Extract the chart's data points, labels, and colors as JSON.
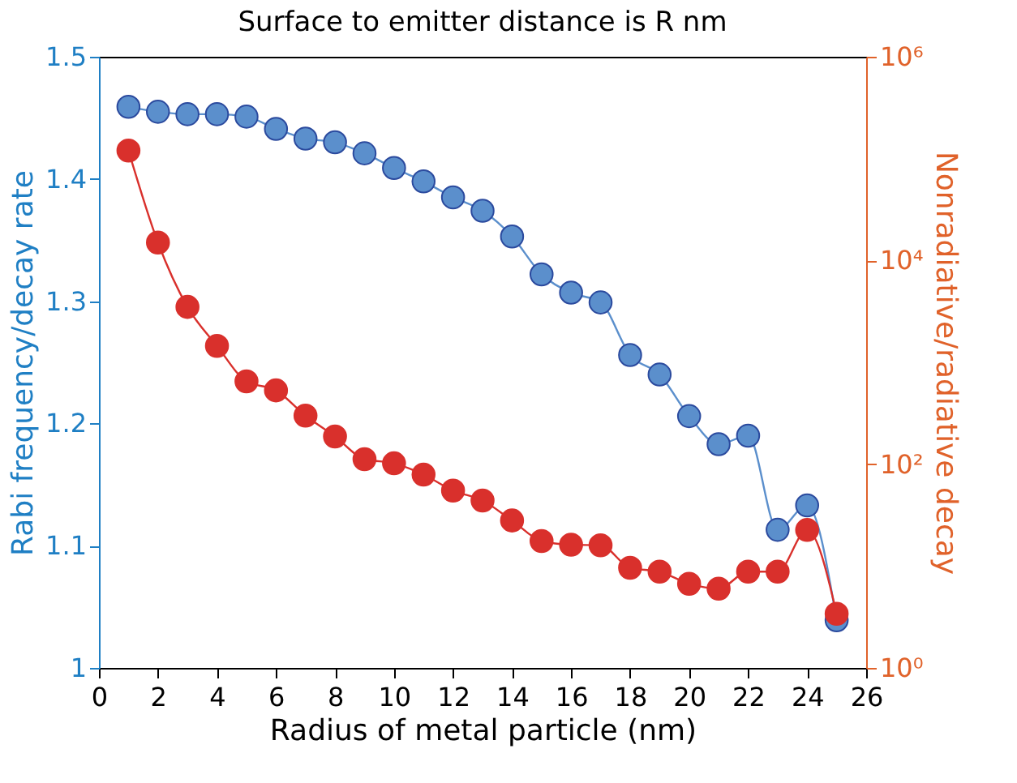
{
  "chart_data": {
    "type": "line",
    "title": "Surface to emitter distance is R nm",
    "xlabel": "Radius of metal particle (nm)",
    "ylabel": "Rabi frequency/decay rate",
    "y2label": "Nonradiative/radiative decay",
    "x": [
      1,
      2,
      3,
      4,
      5,
      6,
      7,
      8,
      9,
      10,
      11,
      12,
      13,
      14,
      15,
      16,
      17,
      18,
      19,
      20,
      21,
      22,
      23,
      24,
      25
    ],
    "series": [
      {
        "color": "#5b8fcc",
        "values": [
          1.459,
          1.455,
          1.453,
          1.453,
          1.451,
          1.441,
          1.433,
          1.43,
          1.421,
          1.409,
          1.398,
          1.385,
          1.374,
          1.353,
          1.322,
          1.307,
          1.299,
          1.256,
          1.24,
          1.206,
          1.183,
          1.19,
          1.113,
          1.133,
          1.039
        ]
      },
      {
        "color": "#d9302c",
        "axis": "y2",
        "values": [
          120000,
          15000,
          3500,
          1450,
          650,
          530,
          300,
          187,
          112,
          102,
          79,
          55,
          44,
          28,
          17.6,
          16.2,
          16,
          9.6,
          8.8,
          6.7,
          6.0,
          8.8,
          8.8,
          22.6,
          3.4
        ]
      }
    ],
    "xlim": [
      0,
      26
    ],
    "xticks": [
      0,
      2,
      4,
      6,
      8,
      10,
      12,
      14,
      16,
      18,
      20,
      22,
      24,
      26
    ],
    "ylim": [
      1,
      1.5
    ],
    "yticks": [
      1,
      1.1,
      1.2,
      1.3,
      1.4,
      1.5
    ],
    "y2lim": [
      1,
      1000000
    ],
    "y2ticks": [
      {
        "value": 1,
        "label": "10⁰"
      },
      {
        "value": 100,
        "label": "10²"
      },
      {
        "value": 10000,
        "label": "10⁴"
      },
      {
        "value": 1000000,
        "label": "10⁶"
      }
    ],
    "log": "y2",
    "grid": false,
    "marker": "circle",
    "line_style": "solid"
  }
}
